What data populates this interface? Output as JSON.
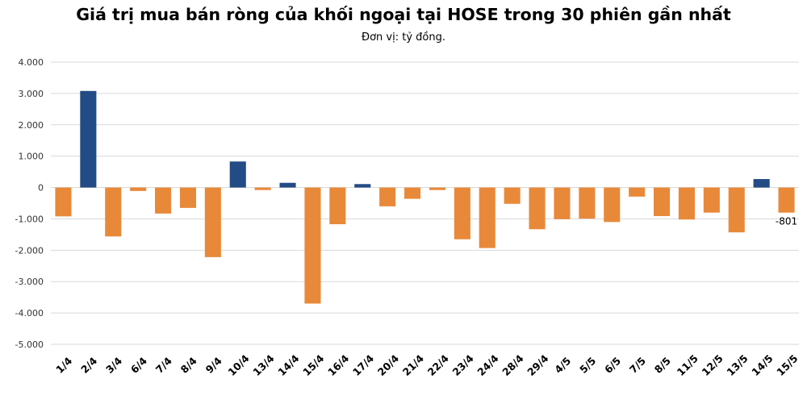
{
  "chart_data": {
    "type": "bar",
    "title": "Giá trị mua bán ròng của khối ngoại tại HOSE trong 30 phiên gần nhất",
    "subtitle": "Đơn vị: tỷ đồng.",
    "xlabel": "",
    "ylabel": "",
    "ylim": [
      -5000,
      4000
    ],
    "yticks": [
      4000,
      3000,
      2000,
      1000,
      0,
      -1000,
      -2000,
      -3000,
      -4000,
      -5000
    ],
    "ytick_labels": [
      "4.000",
      "3.000",
      "2.000",
      "1.000",
      "0",
      "-1.000",
      "-2.000",
      "-3.000",
      "-4.000",
      "-5.000"
    ],
    "grid": true,
    "categories": [
      "1/4",
      "2/4",
      "3/4",
      "6/4",
      "7/4",
      "8/4",
      "9/4",
      "10/4",
      "13/4",
      "14/4",
      "15/4",
      "16/4",
      "17/4",
      "20/4",
      "21/4",
      "22/4",
      "23/4",
      "24/4",
      "28/4",
      "29/4",
      "4/5",
      "5/5",
      "6/5",
      "7/5",
      "8/5",
      "11/5",
      "12/5",
      "13/5",
      "14/5",
      "15/5"
    ],
    "values": [
      -920,
      3080,
      -1560,
      -110,
      -830,
      -650,
      -2220,
      830,
      -80,
      150,
      -3700,
      -1170,
      110,
      -600,
      -360,
      -80,
      -1650,
      -1930,
      -520,
      -1330,
      -1010,
      -990,
      -1100,
      -290,
      -910,
      -1020,
      -800,
      -1430,
      270,
      -801
    ],
    "data_labels": [
      {
        "index": 29,
        "text": "-801"
      }
    ],
    "colors": {
      "positive": "#234b85",
      "negative": "#e8893a",
      "grid": "#d9d9d9"
    }
  }
}
